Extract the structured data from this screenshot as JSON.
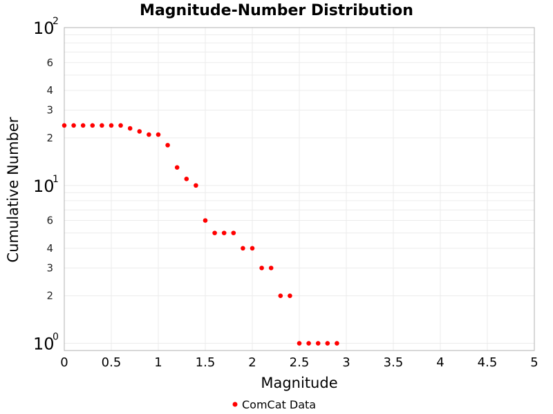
{
  "chart_data": {
    "type": "scatter",
    "title": "Magnitude-Number Distribution",
    "xlabel": "Magnitude",
    "ylabel": "Cumulative Number",
    "xlim": [
      0,
      5
    ],
    "ylim": [
      0.9,
      100
    ],
    "y_scale": "log",
    "grid": true,
    "legend_position": "bottom-center",
    "x_ticks": [
      "0",
      "0.5",
      "1",
      "1.5",
      "2",
      "2.5",
      "3",
      "3.5",
      "4",
      "4.5",
      "5"
    ],
    "y_minor_tick_labels": [
      "2",
      "3",
      "4",
      "6"
    ],
    "y_major_tick_labels": [
      {
        "base": "10",
        "exp": "0"
      },
      {
        "base": "10",
        "exp": "1"
      },
      {
        "base": "10",
        "exp": "2"
      }
    ],
    "series": [
      {
        "name": "ComCat Data",
        "color": "#ff0000",
        "x": [
          0,
          0.1,
          0.2,
          0.3,
          0.4,
          0.5,
          0.6,
          0.7,
          0.8,
          0.9,
          1.0,
          1.1,
          1.2,
          1.3,
          1.4,
          1.5,
          1.6,
          1.7,
          1.8,
          1.9,
          2.0,
          2.1,
          2.2,
          2.3,
          2.4,
          2.5,
          2.6,
          2.7,
          2.8,
          2.9
        ],
        "y": [
          24,
          24,
          24,
          24,
          24,
          24,
          24,
          23,
          22,
          21,
          21,
          18,
          13,
          11,
          10,
          6,
          5,
          5,
          5,
          4,
          4,
          3,
          3,
          2,
          2,
          1,
          1,
          1,
          1,
          1
        ]
      }
    ]
  }
}
